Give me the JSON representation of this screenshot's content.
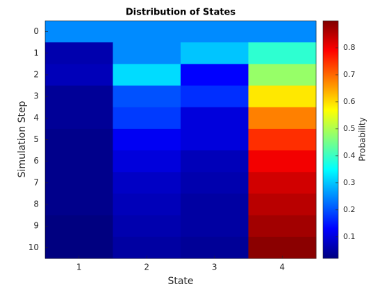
{
  "chart_data": {
    "type": "heatmap",
    "title": "Distribution of States",
    "x_label": "State",
    "y_label": "Simulation Step",
    "colorbar_label": "Probability",
    "colormap": "jet",
    "x_categories": [
      1,
      2,
      3,
      4
    ],
    "y_categories": [
      0,
      1,
      2,
      3,
      4,
      5,
      6,
      7,
      8,
      9,
      10
    ],
    "values": [
      [
        0.25,
        0.25,
        0.25,
        0.25
      ],
      [
        0.06,
        0.25,
        0.3,
        0.39
      ],
      [
        0.07,
        0.32,
        0.13,
        0.48
      ],
      [
        0.04,
        0.2,
        0.17,
        0.59
      ],
      [
        0.04,
        0.18,
        0.1,
        0.68
      ],
      [
        0.03,
        0.12,
        0.1,
        0.75
      ],
      [
        0.03,
        0.1,
        0.07,
        0.8
      ],
      [
        0.03,
        0.08,
        0.06,
        0.83
      ],
      [
        0.03,
        0.07,
        0.05,
        0.85
      ],
      [
        0.02,
        0.06,
        0.05,
        0.87
      ],
      [
        0.02,
        0.05,
        0.04,
        0.89
      ]
    ],
    "clim": [
      0.02,
      0.9
    ],
    "cticks": [
      0.1,
      0.2,
      0.3,
      0.4,
      0.5,
      0.6,
      0.7,
      0.8
    ]
  }
}
